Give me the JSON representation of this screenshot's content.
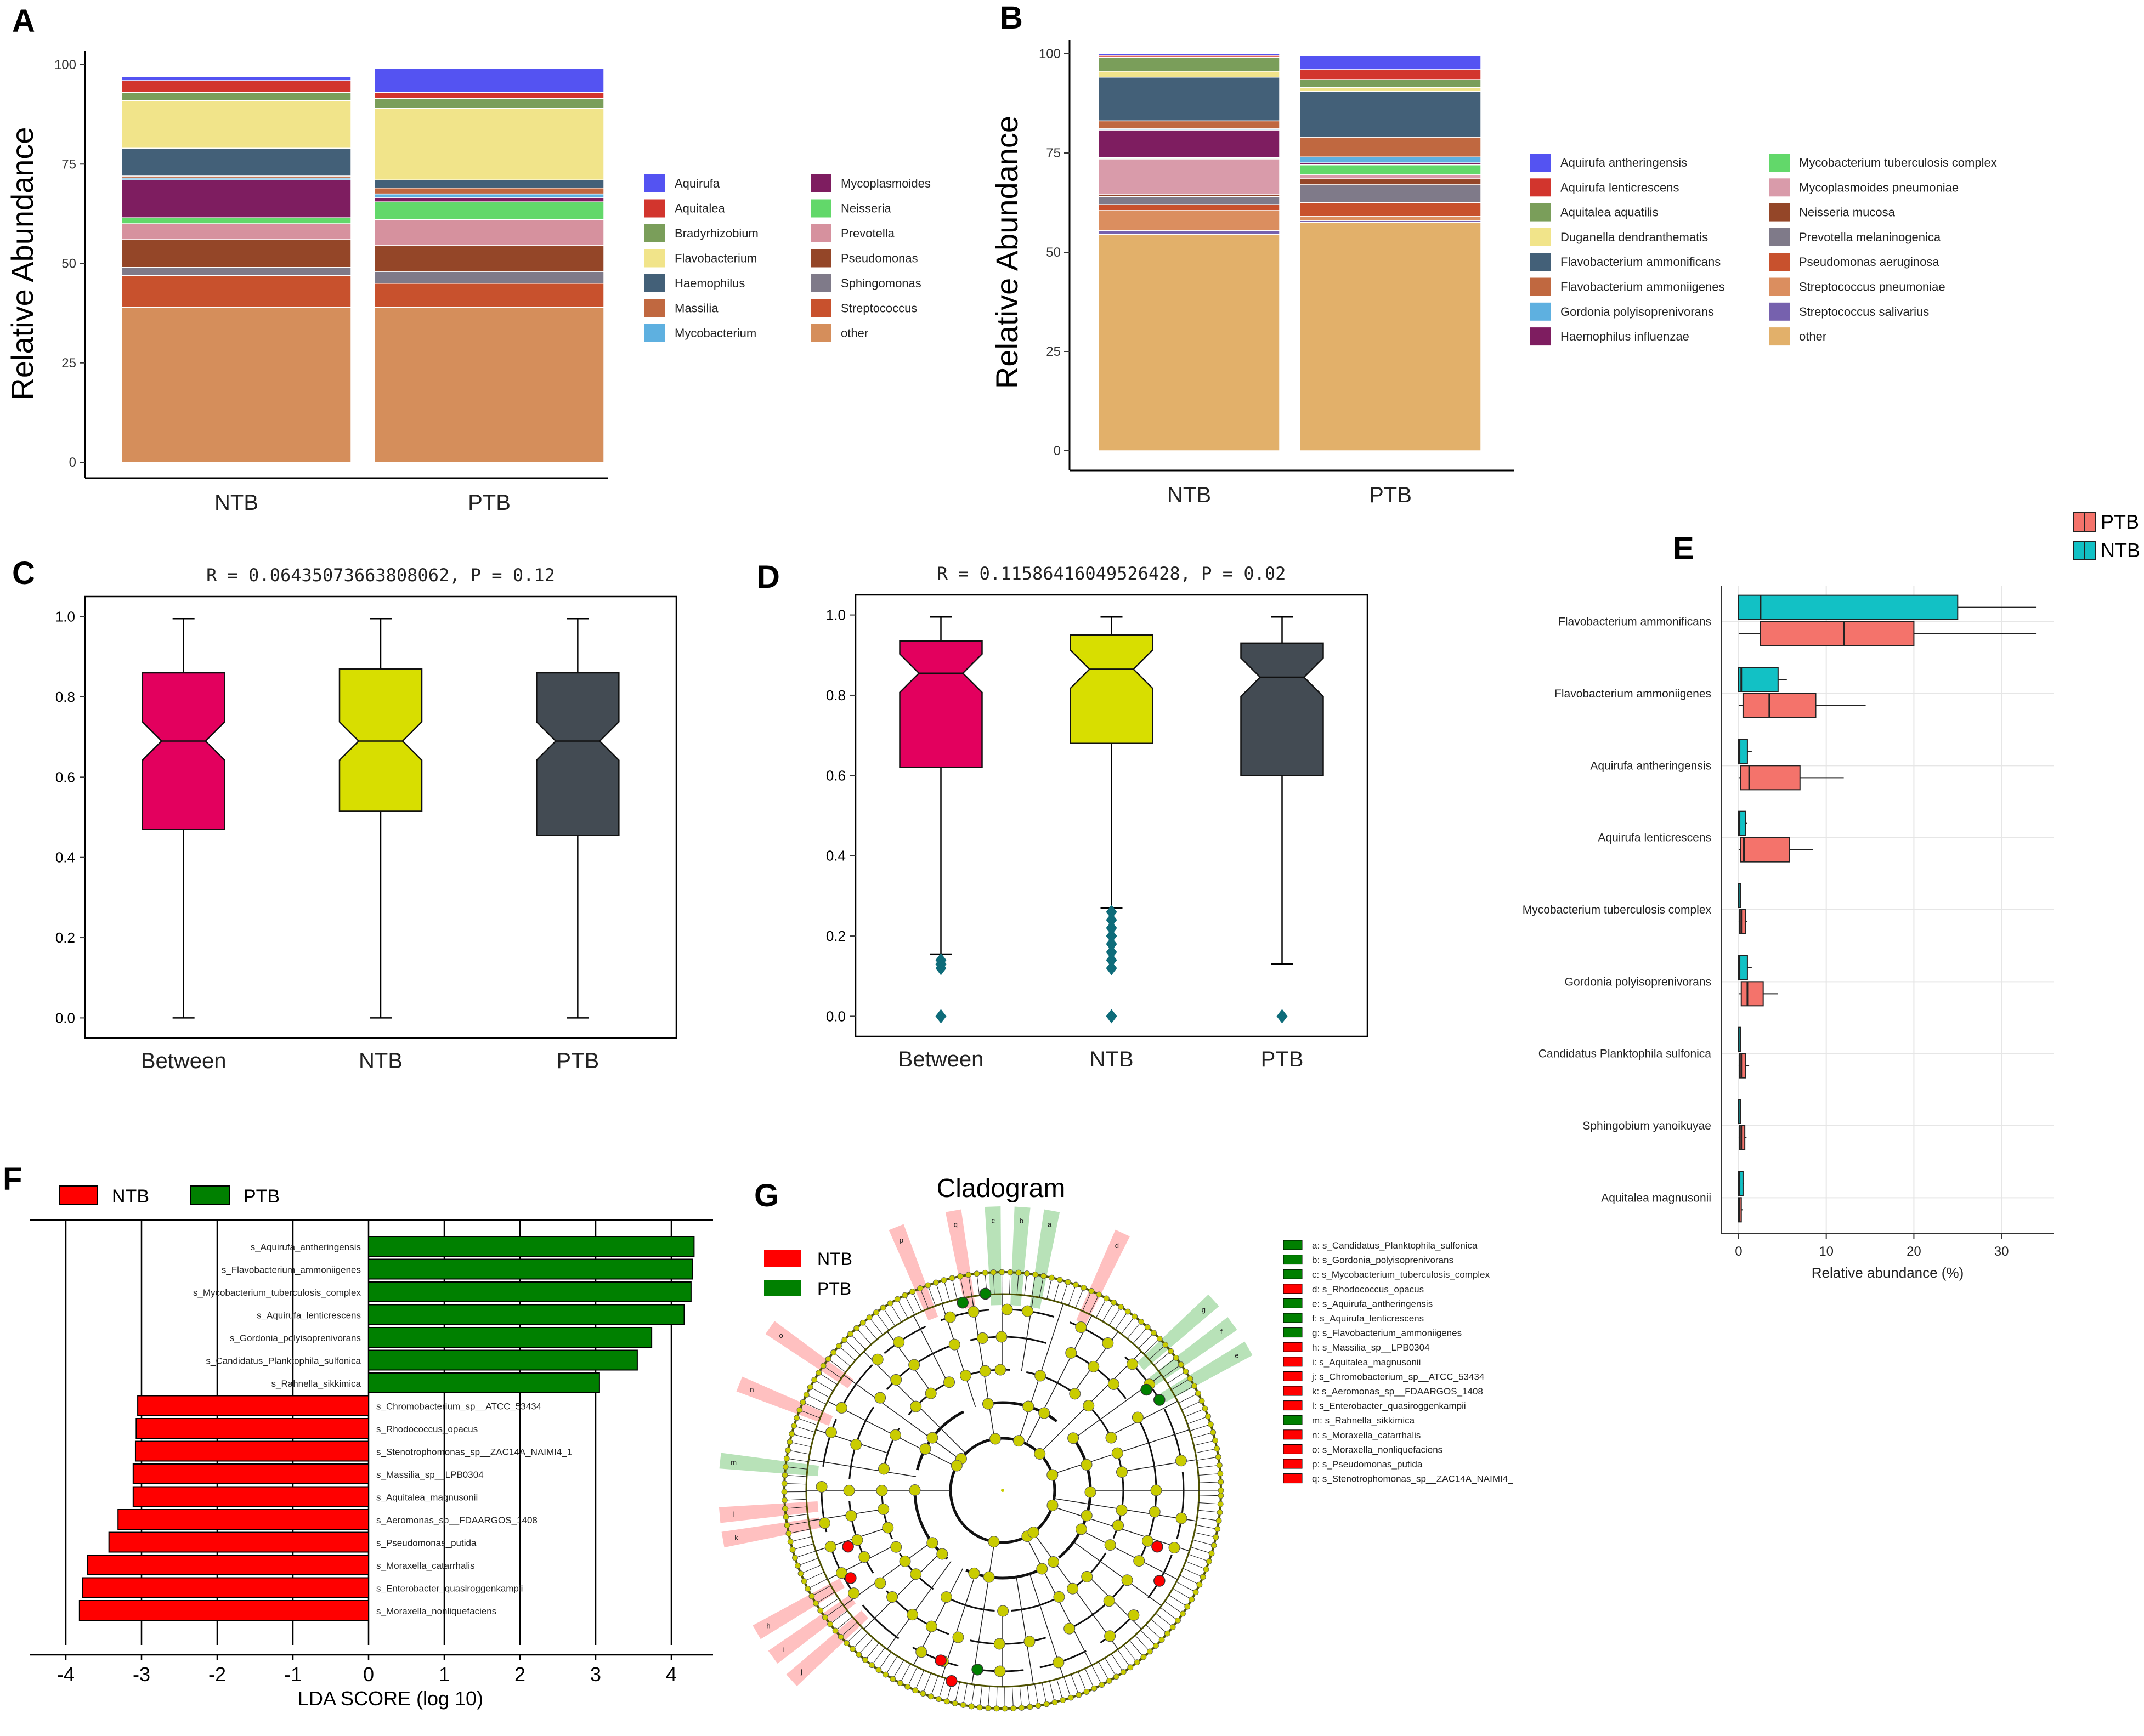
{
  "panels": {
    "A": "A",
    "B": "B",
    "C": "C",
    "D": "D",
    "E": "E",
    "F": "F",
    "G": "G"
  },
  "chart_data": [
    {
      "id": "A",
      "type": "stacked-bar",
      "ylabel": "Relative Abundance",
      "ylim": [
        0,
        100
      ],
      "yticks": [
        0,
        25,
        50,
        75,
        100
      ],
      "categories": [
        "NTB",
        "PTB"
      ],
      "series": [
        {
          "name": "other",
          "color": "#D58E5B",
          "values": [
            39,
            39
          ]
        },
        {
          "name": "Streptococcus",
          "color": "#C8512D",
          "values": [
            8,
            6
          ]
        },
        {
          "name": "Sphingomonas",
          "color": "#7F7A89",
          "values": [
            2,
            3
          ]
        },
        {
          "name": "Pseudomonas",
          "color": "#944628",
          "values": [
            7,
            6.5
          ]
        },
        {
          "name": "Prevotella",
          "color": "#D6919E",
          "values": [
            4,
            6.5
          ]
        },
        {
          "name": "Neisseria",
          "color": "#62D86A",
          "values": [
            1.5,
            4.5
          ]
        },
        {
          "name": "Mycoplasmoides",
          "color": "#7E1D60",
          "values": [
            9.5,
            1
          ]
        },
        {
          "name": "Mycobacterium",
          "color": "#5EB0E0",
          "values": [
            0.5,
            1
          ]
        },
        {
          "name": "Massilia",
          "color": "#C06840",
          "values": [
            0.5,
            1.5
          ]
        },
        {
          "name": "Haemophilus",
          "color": "#436078",
          "values": [
            7,
            2
          ]
        },
        {
          "name": "Flavobacterium",
          "color": "#F1E48A",
          "values": [
            12,
            18
          ]
        },
        {
          "name": "Bradyrhizobium",
          "color": "#7A9E5A",
          "values": [
            2,
            2.5
          ]
        },
        {
          "name": "Aquitalea",
          "color": "#D2352D",
          "values": [
            3,
            1.5
          ]
        },
        {
          "name": "Aquirufa",
          "color": "#5453F2",
          "values": [
            1,
            6
          ]
        }
      ],
      "legend_order": [
        "Aquirufa",
        "Aquitalea",
        "Bradyrhizobium",
        "Flavobacterium",
        "Haemophilus",
        "Massilia",
        "Mycobacterium",
        "Mycoplasmoides",
        "Neisseria",
        "Prevotella",
        "Pseudomonas",
        "Sphingomonas",
        "Streptococcus",
        "other"
      ]
    },
    {
      "id": "B",
      "type": "stacked-bar",
      "ylabel": "Relative Abundance",
      "ylim": [
        0,
        100
      ],
      "yticks": [
        0,
        25,
        50,
        75,
        100
      ],
      "categories": [
        "NTB",
        "PTB"
      ],
      "series": [
        {
          "name": "other",
          "color": "#E2B06A",
          "values": [
            54.5,
            57.5
          ]
        },
        {
          "name": "Streptococcus salivarius",
          "color": "#7661AE",
          "values": [
            1,
            0.5
          ]
        },
        {
          "name": "Streptococcus pneumoniae",
          "color": "#DB8E5F",
          "values": [
            5,
            1
          ]
        },
        {
          "name": "Pseudomonas aeruginosa",
          "color": "#C8512D",
          "values": [
            1.5,
            3.5
          ]
        },
        {
          "name": "Prevotella melaninogenica",
          "color": "#7F7A89",
          "values": [
            2,
            4.5
          ]
        },
        {
          "name": "Neisseria mucosa",
          "color": "#944628",
          "values": [
            0.5,
            1.5
          ]
        },
        {
          "name": "Mycoplasmoides pneumoniae",
          "color": "#D99BAA",
          "values": [
            9,
            1
          ]
        },
        {
          "name": "Mycobacterium tuberculosis complex",
          "color": "#62D86A",
          "values": [
            0.3,
            2.5
          ]
        },
        {
          "name": "Haemophilus influenzae",
          "color": "#7E1D60",
          "values": [
            7,
            0.5
          ]
        },
        {
          "name": "Gordonia polyisoprenivorans",
          "color": "#5EB0E0",
          "values": [
            0.3,
            1.5
          ]
        },
        {
          "name": "Flavobacterium ammoniigenes",
          "color": "#C06840",
          "values": [
            2,
            5
          ]
        },
        {
          "name": "Flavobacterium ammonificans",
          "color": "#436078",
          "values": [
            11,
            11.5
          ]
        },
        {
          "name": "Duganella dendranthematis",
          "color": "#F1E48A",
          "values": [
            1.5,
            1
          ]
        },
        {
          "name": "Aquitalea aquatilis",
          "color": "#7A9E5A",
          "values": [
            3.5,
            2
          ]
        },
        {
          "name": "Aquirufa lenticrescens",
          "color": "#D2352D",
          "values": [
            0.5,
            2.5
          ]
        },
        {
          "name": "Aquirufa antheringensis",
          "color": "#5453F2",
          "values": [
            0.5,
            3.5
          ]
        }
      ],
      "legend_order": [
        "Aquirufa antheringensis",
        "Aquirufa lenticrescens",
        "Aquitalea aquatilis",
        "Duganella dendranthematis",
        "Flavobacterium ammonificans",
        "Flavobacterium ammoniigenes",
        "Gordonia polyisoprenivorans",
        "Haemophilus influenzae",
        "Mycobacterium tuberculosis complex",
        "Mycoplasmoides pneumoniae",
        "Neisseria mucosa",
        "Prevotella melaninogenica",
        "Pseudomonas aeruginosa",
        "Streptococcus pneumoniae",
        "Streptococcus salivarius",
        "other"
      ]
    },
    {
      "id": "C",
      "type": "boxplot",
      "title": "R = 0.06435073663808062, P = 0.12",
      "ylim": [
        -0.05,
        1.05
      ],
      "yticks": [
        "0.0",
        "0.2",
        "0.4",
        "0.6",
        "0.8",
        "1.0"
      ],
      "categories": [
        "Between",
        "NTB",
        "PTB"
      ],
      "boxes": [
        {
          "name": "Between",
          "color": "#E3005E",
          "min": 0.0,
          "q1": 0.47,
          "median": 0.69,
          "q3": 0.86,
          "max": 0.995,
          "outliers": []
        },
        {
          "name": "NTB",
          "color": "#D8DE00",
          "min": 0.0,
          "q1": 0.515,
          "median": 0.69,
          "q3": 0.87,
          "max": 0.995,
          "outliers": []
        },
        {
          "name": "PTB",
          "color": "#434B53",
          "min": 0.0,
          "q1": 0.455,
          "median": 0.69,
          "q3": 0.86,
          "max": 0.995,
          "outliers": []
        }
      ]
    },
    {
      "id": "D",
      "type": "boxplot",
      "title": "R = 0.11586416049526428, P = 0.02",
      "ylim": [
        -0.05,
        1.05
      ],
      "yticks": [
        "0.0",
        "0.2",
        "0.4",
        "0.6",
        "0.8",
        "1.0"
      ],
      "categories": [
        "Between",
        "NTB",
        "PTB"
      ],
      "boxes": [
        {
          "name": "Between",
          "color": "#E3005E",
          "min": 0.155,
          "q1": 0.62,
          "median": 0.855,
          "q3": 0.935,
          "max": 0.995,
          "outliers": [
            0.0,
            0.12,
            0.13,
            0.14
          ]
        },
        {
          "name": "NTB",
          "color": "#D8DE00",
          "min": 0.27,
          "q1": 0.68,
          "median": 0.865,
          "q3": 0.95,
          "max": 0.995,
          "outliers": [
            0.0,
            0.12,
            0.14,
            0.16,
            0.18,
            0.2,
            0.22,
            0.24,
            0.26
          ]
        },
        {
          "name": "PTB",
          "color": "#434B53",
          "min": 0.13,
          "q1": 0.6,
          "median": 0.845,
          "q3": 0.93,
          "max": 0.995,
          "outliers": [
            0.0
          ]
        }
      ]
    },
    {
      "id": "E",
      "type": "horizontal-boxplot",
      "xlabel": "Relative abundance (%)",
      "xlim": [
        -2,
        36
      ],
      "xticks": [
        0,
        10,
        20,
        30
      ],
      "legend": [
        {
          "name": "PTB",
          "color": "#F4736B"
        },
        {
          "name": "NTB",
          "color": "#12C1C5"
        }
      ],
      "categories": [
        "Flavobacterium ammonificans",
        "Flavobacterium ammoniigenes",
        "Aquirufa antheringensis",
        "Aquirufa lenticrescens",
        "Mycobacterium tuberculosis complex",
        "Gordonia polyisoprenivorans",
        "Candidatus Planktophila sulfonica",
        "Sphingobium yanoikuyae",
        "Aquitalea magnusonii"
      ],
      "NTB": [
        {
          "min": 0,
          "q1": 0,
          "median": 2.5,
          "q3": 25,
          "max": 34
        },
        {
          "min": 0,
          "q1": 0,
          "median": 0.3,
          "q3": 4.5,
          "max": 5.5
        },
        {
          "min": 0,
          "q1": 0,
          "median": 0.1,
          "q3": 1,
          "max": 1.5
        },
        {
          "min": 0,
          "q1": 0,
          "median": 0.1,
          "q3": 0.8,
          "max": 1
        },
        {
          "min": 0,
          "q1": 0,
          "median": 0,
          "q3": 0.2,
          "max": 0.3
        },
        {
          "min": 0,
          "q1": 0,
          "median": 0.1,
          "q3": 1,
          "max": 1.5
        },
        {
          "min": 0,
          "q1": 0,
          "median": 0,
          "q3": 0.2,
          "max": 0.3
        },
        {
          "min": 0,
          "q1": 0,
          "median": 0,
          "q3": 0.2,
          "max": 0.3
        },
        {
          "min": 0,
          "q1": 0,
          "median": 0.1,
          "q3": 0.5,
          "max": 0.6
        }
      ],
      "PTB": [
        {
          "min": 0,
          "q1": 2.5,
          "median": 12,
          "q3": 20,
          "max": 34
        },
        {
          "min": 0,
          "q1": 0.5,
          "median": 3.5,
          "q3": 8.8,
          "max": 14.5
        },
        {
          "min": 0,
          "q1": 0.2,
          "median": 1.2,
          "q3": 7,
          "max": 12
        },
        {
          "min": 0,
          "q1": 0.2,
          "median": 0.6,
          "q3": 5.8,
          "max": 8.5
        },
        {
          "min": 0,
          "q1": 0.1,
          "median": 0.3,
          "q3": 0.8,
          "max": 1
        },
        {
          "min": 0,
          "q1": 0.3,
          "median": 1,
          "q3": 2.8,
          "max": 4.5
        },
        {
          "min": 0,
          "q1": 0.1,
          "median": 0.3,
          "q3": 0.8,
          "max": 1.2
        },
        {
          "min": 0,
          "q1": 0.1,
          "median": 0.3,
          "q3": 0.7,
          "max": 0.9
        },
        {
          "min": 0,
          "q1": 0,
          "median": 0.1,
          "q3": 0.3,
          "max": 0.5
        }
      ]
    },
    {
      "id": "F",
      "type": "bar",
      "xlabel": "LDA SCORE (log 10)",
      "xlim": [
        -4.2,
        4.5
      ],
      "xticks": [
        -4,
        -3,
        -2,
        -1,
        0,
        1,
        2,
        3,
        4
      ],
      "legend": [
        {
          "name": "NTB",
          "color": "#FF0000"
        },
        {
          "name": "PTB",
          "color": "#008000"
        }
      ],
      "bars": [
        {
          "label": "s_Aquirufa_antheringensis",
          "value": 4.3,
          "group": "PTB"
        },
        {
          "label": "s_Flavobacterium_ammoniigenes",
          "value": 4.28,
          "group": "PTB"
        },
        {
          "label": "s_Mycobacterium_tuberculosis_complex",
          "value": 4.26,
          "group": "PTB"
        },
        {
          "label": "s_Aquirufa_lenticrescens",
          "value": 4.17,
          "group": "PTB"
        },
        {
          "label": "s_Gordonia_polyisoprenivorans",
          "value": 3.74,
          "group": "PTB"
        },
        {
          "label": "s_Candidatus_Planktophila_sulfonica",
          "value": 3.55,
          "group": "PTB"
        },
        {
          "label": "s_Rahnella_sikkimica",
          "value": 3.05,
          "group": "PTB"
        },
        {
          "label": "s_Chromobacterium_sp__ATCC_53434",
          "value": -3.05,
          "group": "NTB"
        },
        {
          "label": "s_Rhodococcus_opacus",
          "value": -3.07,
          "group": "NTB"
        },
        {
          "label": "s_Stenotrophomonas_sp__ZAC14A_NAIMI4_1",
          "value": -3.08,
          "group": "NTB"
        },
        {
          "label": "s_Massilia_sp__LPB0304",
          "value": -3.11,
          "group": "NTB"
        },
        {
          "label": "s_Aquitalea_magnusonii",
          "value": -3.11,
          "group": "NTB"
        },
        {
          "label": "s_Aeromonas_sp__FDAARGOS_1408",
          "value": -3.31,
          "group": "NTB"
        },
        {
          "label": "s_Pseudomonas_putida",
          "value": -3.43,
          "group": "NTB"
        },
        {
          "label": "s_Moraxella_catarrhalis",
          "value": -3.71,
          "group": "NTB"
        },
        {
          "label": "s_Enterobacter_quasiroggenkampii",
          "value": -3.78,
          "group": "NTB"
        },
        {
          "label": "s_Moraxella_nonliquefaciens",
          "value": -3.82,
          "group": "NTB"
        }
      ]
    },
    {
      "id": "G",
      "type": "cladogram",
      "title": "Cladogram",
      "legend": [
        {
          "name": "NTB",
          "color": "#FF0000"
        },
        {
          "name": "PTB",
          "color": "#008000"
        }
      ],
      "key": [
        {
          "text": "a: s_Candidatus_Planktophila_sulfonica",
          "group": "PTB"
        },
        {
          "text": "b: s_Gordonia_polyisoprenivorans",
          "group": "PTB"
        },
        {
          "text": "c: s_Mycobacterium_tuberculosis_complex",
          "group": "PTB"
        },
        {
          "text": "d: s_Rhodococcus_opacus",
          "group": "NTB"
        },
        {
          "text": "e: s_Aquirufa_antheringensis",
          "group": "PTB"
        },
        {
          "text": "f: s_Aquirufa_lenticrescens",
          "group": "PTB"
        },
        {
          "text": "g: s_Flavobacterium_ammoniigenes",
          "group": "PTB"
        },
        {
          "text": "h: s_Massilia_sp__LPB0304",
          "group": "NTB"
        },
        {
          "text": "i: s_Aquitalea_magnusonii",
          "group": "NTB"
        },
        {
          "text": "j: s_Chromobacterium_sp__ATCC_53434",
          "group": "NTB"
        },
        {
          "text": "k: s_Aeromonas_sp__FDAARGOS_1408",
          "group": "NTB"
        },
        {
          "text": "l: s_Enterobacter_quasiroggenkampii",
          "group": "NTB"
        },
        {
          "text": "m: s_Rahnella_sikkimica",
          "group": "PTB"
        },
        {
          "text": "n: s_Moraxella_catarrhalis",
          "group": "NTB"
        },
        {
          "text": "o: s_Moraxella_nonliquefaciens",
          "group": "NTB"
        },
        {
          "text": "p: s_Pseudomonas_putida",
          "group": "NTB"
        },
        {
          "text": "q: s_Stenotrophomonas_sp__ZAC14A_NAIMI4_",
          "group": "NTB"
        }
      ],
      "highlight_letters": [
        {
          "letter": "a",
          "group": "PTB",
          "angle": 80
        },
        {
          "letter": "b",
          "group": "PTB",
          "angle": 86
        },
        {
          "letter": "c",
          "group": "PTB",
          "angle": 92
        },
        {
          "letter": "d",
          "group": "NTB",
          "angle": 65
        },
        {
          "letter": "e",
          "group": "PTB",
          "angle": 30
        },
        {
          "letter": "f",
          "group": "PTB",
          "angle": 36
        },
        {
          "letter": "g",
          "group": "PTB",
          "angle": 42
        },
        {
          "letter": "h",
          "group": "NTB",
          "angle": 210
        },
        {
          "letter": "i",
          "group": "NTB",
          "angle": 216
        },
        {
          "letter": "j",
          "group": "NTB",
          "angle": 222
        },
        {
          "letter": "k",
          "group": "NTB",
          "angle": 190
        },
        {
          "letter": "l",
          "group": "NTB",
          "angle": 185
        },
        {
          "letter": "m",
          "group": "PTB",
          "angle": 174
        },
        {
          "letter": "n",
          "group": "NTB",
          "angle": 158
        },
        {
          "letter": "o",
          "group": "NTB",
          "angle": 145
        },
        {
          "letter": "p",
          "group": "NTB",
          "angle": 112
        },
        {
          "letter": "q",
          "group": "NTB",
          "angle": 100
        }
      ]
    }
  ]
}
